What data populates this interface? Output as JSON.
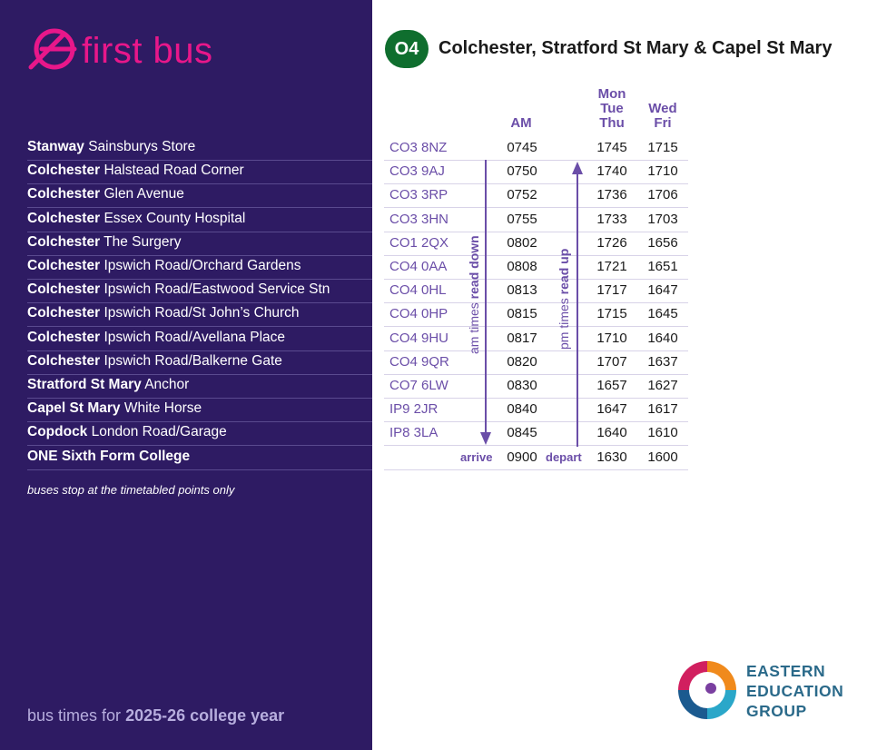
{
  "brand": {
    "name": "first bus"
  },
  "route": {
    "number": "O4",
    "title": "Colchester, Stratford St Mary & Capel St Mary"
  },
  "headers": {
    "am": "AM",
    "days1": [
      "Mon",
      "Tue",
      "Thu"
    ],
    "days2": [
      "Wed",
      "Fri"
    ]
  },
  "labels": {
    "am_dir": "am times",
    "am_dir_bold": "read down",
    "pm_dir": "pm times",
    "pm_dir_bold": "read up",
    "arrive": "arrive",
    "depart": "depart"
  },
  "stops": [
    {
      "place": "Stanway",
      "stop": "Sainsburys Store",
      "postcode": "CO3 8NZ",
      "am": "0745",
      "mon_tue_thu": "1745",
      "wed_fri": "1715"
    },
    {
      "place": "Colchester",
      "stop": "Halstead Road Corner",
      "postcode": "CO3 9AJ",
      "am": "0750",
      "mon_tue_thu": "1740",
      "wed_fri": "1710"
    },
    {
      "place": "Colchester",
      "stop": "Glen Avenue",
      "postcode": "CO3 3RP",
      "am": "0752",
      "mon_tue_thu": "1736",
      "wed_fri": "1706"
    },
    {
      "place": "Colchester",
      "stop": "Essex County Hospital",
      "postcode": "CO3 3HN",
      "am": "0755",
      "mon_tue_thu": "1733",
      "wed_fri": "1703"
    },
    {
      "place": "Colchester",
      "stop": "The Surgery",
      "postcode": "CO1 2QX",
      "am": "0802",
      "mon_tue_thu": "1726",
      "wed_fri": "1656"
    },
    {
      "place": "Colchester",
      "stop": "Ipswich Road/Orchard Gardens",
      "postcode": "CO4 0AA",
      "am": "0808",
      "mon_tue_thu": "1721",
      "wed_fri": "1651"
    },
    {
      "place": "Colchester",
      "stop": "Ipswich Road/Eastwood Service Stn",
      "postcode": "CO4 0HL",
      "am": "0813",
      "mon_tue_thu": "1717",
      "wed_fri": "1647"
    },
    {
      "place": "Colchester",
      "stop": "Ipswich Road/St John’s Church",
      "postcode": "CO4 0HP",
      "am": "0815",
      "mon_tue_thu": "1715",
      "wed_fri": "1645"
    },
    {
      "place": "Colchester",
      "stop": "Ipswich Road/Avellana Place",
      "postcode": "CO4 9HU",
      "am": "0817",
      "mon_tue_thu": "1710",
      "wed_fri": "1640"
    },
    {
      "place": "Colchester",
      "stop": "Ipswich Road/Balkerne Gate",
      "postcode": "CO4 9QR",
      "am": "0820",
      "mon_tue_thu": "1707",
      "wed_fri": "1637"
    },
    {
      "place": "Stratford St Mary",
      "stop": "Anchor",
      "postcode": "CO7 6LW",
      "am": "0830",
      "mon_tue_thu": "1657",
      "wed_fri": "1627"
    },
    {
      "place": "Capel St Mary",
      "stop": "White Horse",
      "postcode": "IP9 2JR",
      "am": "0840",
      "mon_tue_thu": "1647",
      "wed_fri": "1617"
    },
    {
      "place": "Copdock",
      "stop": "London Road/Garage",
      "postcode": "IP8 3LA",
      "am": "0845",
      "mon_tue_thu": "1640",
      "wed_fri": "1610"
    },
    {
      "place": "ONE Sixth Form College",
      "stop": "",
      "postcode": "",
      "am": "0900",
      "mon_tue_thu": "1630",
      "wed_fri": "1600"
    }
  ],
  "note": "buses stop at the timetabled points only",
  "footer": {
    "text": "bus times for",
    "bold": "2025-26 college year"
  },
  "partner": {
    "lines": [
      "EASTERN",
      "EDUCATION",
      "GROUP"
    ]
  },
  "colors": {
    "panel": "#2e1b63",
    "brand_pink": "#e8178a",
    "accent_purple": "#6b4ea8",
    "route_green": "#0f6e2e",
    "partner_blue": "#2b6a8a"
  }
}
